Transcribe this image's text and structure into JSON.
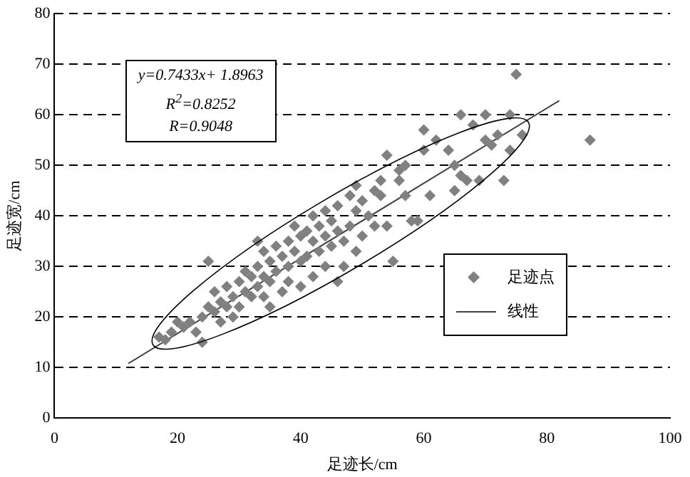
{
  "chart_data": {
    "type": "scatter",
    "xlabel": "足迹长/cm",
    "ylabel": "足迹宽/cm",
    "xlim": [
      0,
      100
    ],
    "xticks": [
      0,
      20,
      40,
      60,
      80,
      100
    ],
    "ylim": [
      0,
      80
    ],
    "yticks": [
      0,
      10,
      20,
      30,
      40,
      50,
      60,
      70,
      80
    ],
    "grid": "y",
    "legend": "bottom right",
    "annotations": [
      "y=0.7433x+ 1.8963",
      "R$^{2}$=0.8252",
      "R=0.9048"
    ],
    "series": [
      {
        "name": "足迹点",
        "type": "scatter",
        "marker": "diamond",
        "color": "#808080",
        "x": [
          17,
          18,
          19,
          20,
          21,
          22,
          23,
          24,
          24,
          25,
          25,
          26,
          26,
          27,
          27,
          28,
          28,
          29,
          29,
          30,
          30,
          31,
          31,
          32,
          32,
          33,
          33,
          33,
          34,
          34,
          34,
          35,
          35,
          35,
          36,
          36,
          37,
          37,
          38,
          38,
          38,
          39,
          39,
          40,
          40,
          40,
          41,
          41,
          42,
          42,
          42,
          43,
          43,
          44,
          44,
          44,
          45,
          45,
          46,
          46,
          46,
          47,
          47,
          48,
          48,
          49,
          49,
          49,
          50,
          50,
          51,
          52,
          52,
          53,
          53,
          54,
          54,
          55,
          56,
          56,
          57,
          57,
          58,
          59,
          60,
          60,
          61,
          62,
          64,
          65,
          65,
          66,
          66,
          67,
          68,
          69,
          70,
          70,
          71,
          72,
          73,
          74,
          74,
          75,
          76,
          87
        ],
        "values": [
          16,
          15.5,
          17,
          19,
          18,
          19,
          17,
          15,
          20,
          31,
          22,
          25,
          21,
          23,
          19,
          26,
          22,
          24,
          20,
          27,
          22,
          29,
          25,
          28,
          24,
          35,
          30,
          26,
          33,
          28,
          24,
          31,
          27,
          22,
          34,
          29,
          32,
          25,
          35,
          30,
          27,
          38,
          33,
          36,
          31,
          26,
          37,
          32,
          40,
          35,
          28,
          38,
          33,
          41,
          36,
          30,
          39,
          34,
          42,
          37,
          27,
          35,
          30,
          44,
          38,
          46,
          41,
          33,
          43,
          36,
          40,
          45,
          38,
          47,
          44,
          52,
          38,
          31,
          49,
          47,
          44,
          50,
          39,
          39,
          57,
          53,
          44,
          55,
          53,
          45,
          50,
          60,
          48,
          47,
          58,
          47,
          55,
          60,
          54,
          56,
          47,
          60,
          53,
          68,
          56,
          55
        ]
      },
      {
        "name": "线性",
        "type": "line",
        "marker": "none",
        "color": "#404040",
        "x": [
          12,
          82
        ],
        "values": [
          10.8,
          62.8
        ]
      }
    ]
  }
}
